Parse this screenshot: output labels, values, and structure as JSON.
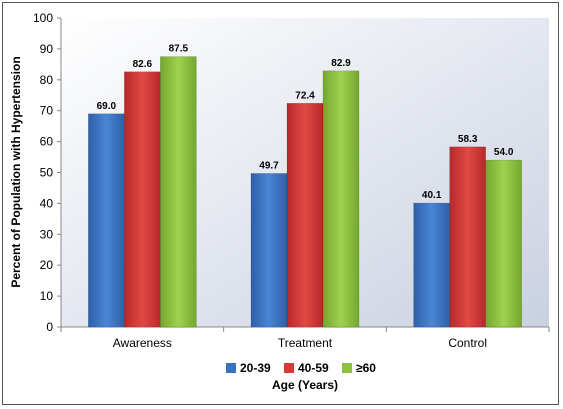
{
  "chart_data": {
    "type": "bar",
    "categories": [
      "Awareness",
      "Treatment",
      "Control"
    ],
    "series": [
      {
        "name": "20-39",
        "values": [
          69.0,
          49.7,
          40.1
        ],
        "color": "#3b72c2"
      },
      {
        "name": "40-59",
        "values": [
          82.6,
          72.4,
          58.3
        ],
        "color": "#d63a35"
      },
      {
        "name": "≥60",
        "values": [
          87.5,
          82.9,
          54.0
        ],
        "color": "#8dc13f"
      }
    ],
    "data_labels": [
      [
        "69.0",
        "82.6",
        "87.5"
      ],
      [
        "49.7",
        "72.4",
        "82.9"
      ],
      [
        "40.1",
        "58.3",
        "54.0"
      ]
    ],
    "title": "",
    "xlabel": "Age (Years)",
    "ylabel": "Percent of Population with Hypertension",
    "ylim": [
      0,
      100
    ],
    "yticks": [
      "0",
      "10",
      "20",
      "30",
      "40",
      "50",
      "60",
      "70",
      "80",
      "90",
      "100"
    ],
    "grid": false,
    "legend_position": "bottom",
    "plot_background": "gradient white to light blue-gray"
  }
}
